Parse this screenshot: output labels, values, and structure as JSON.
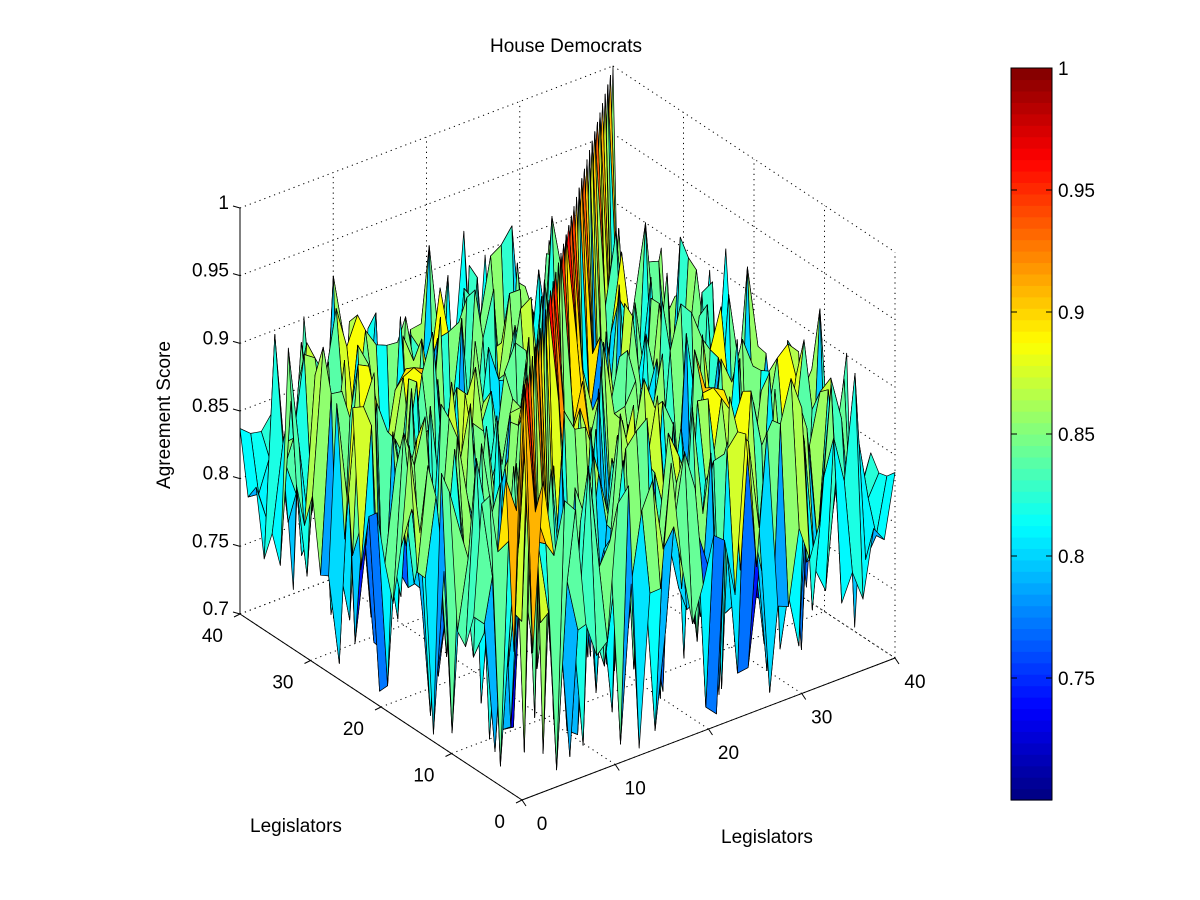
{
  "figure": {
    "background": "#ffffff",
    "colormap": "jet",
    "edge_color": "#000000"
  },
  "chart_data": {
    "type": "surface",
    "title": "House Democrats",
    "xlabel": "Legislators",
    "ylabel": "Legislators",
    "zlabel": "Agreement Score",
    "xlim": [
      0,
      40
    ],
    "ylim": [
      0,
      40
    ],
    "zlim": [
      0.7,
      1
    ],
    "x_ticks": [
      "0",
      "10",
      "20",
      "30",
      "40"
    ],
    "y_ticks": [
      "0",
      "10",
      "20",
      "30",
      "40"
    ],
    "z_ticks": [
      "0.7",
      "0.75",
      "0.8",
      "0.85",
      "0.9",
      "0.95",
      "1"
    ],
    "grid": true,
    "grid_size": [
      36,
      36
    ],
    "diagonal_value": 1.0,
    "value_range": [
      0.7,
      0.93
    ],
    "colorbar": {
      "location": "right",
      "range": [
        0.7,
        1.0
      ],
      "ticks": [
        "0.75",
        "0.8",
        "0.85",
        "0.9",
        "0.95",
        "1"
      ]
    }
  }
}
